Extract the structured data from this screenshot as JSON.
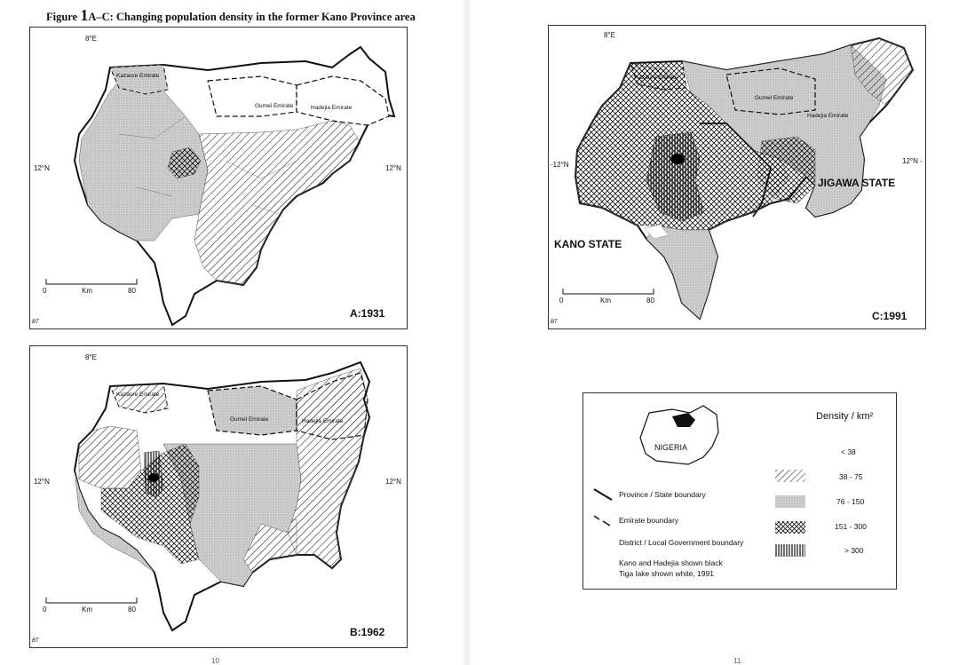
{
  "figure_title_prefix": "Figure ",
  "figure_title_numeral": "1",
  "figure_title_rest": "A–C: Changing population density in the former Kano Province area",
  "coords": {
    "lon_8e": "8°E",
    "lat_12n": "12°N",
    "lat_12n_dash": "-12°N",
    "lat_12n_right_dash": "12°N -"
  },
  "emirates": {
    "kazaure": "Kazaure Emirate",
    "gumel": "Gumel Emirate",
    "hadejia": "Hadejia Emirate",
    "gumel_c": "Gumel Emirate",
    "hadejia_c": "Hadejia Emirate"
  },
  "scale": {
    "zero": "0",
    "unit": "Km",
    "max": "80"
  },
  "panels": [
    {
      "id": "A",
      "label": "A:1931"
    },
    {
      "id": "B",
      "label": "B:1962"
    },
    {
      "id": "C",
      "label": "C:1991"
    }
  ],
  "states": {
    "kano": "KANO STATE",
    "jigawa": "JIGAWA STATE"
  },
  "credit": "BT",
  "legend": {
    "title": "Density / km²",
    "inset": "NIGERIA",
    "classes": [
      "< 38",
      "38 - 75",
      "76 - 150",
      "151 - 300",
      "> 300"
    ],
    "boundaries": [
      "Province / State boundary",
      "Emirate boundary",
      "District / Local Government boundary"
    ],
    "note_line1": "Kano and Hadejia shown black",
    "note_line2": "Tiga lake shown white, 1991"
  },
  "page_numbers": {
    "left": "10",
    "right": "11"
  },
  "colors": {
    "ink": "#111111",
    "stipple": "#c8c8c8",
    "paper": "#ffffff"
  }
}
